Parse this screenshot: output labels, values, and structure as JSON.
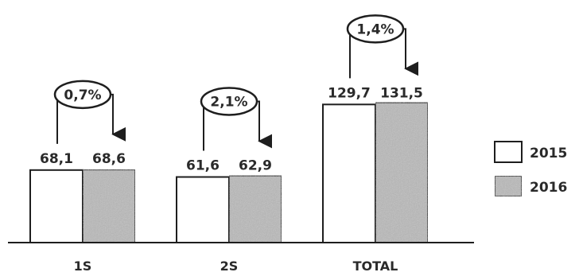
{
  "chart_data": {
    "type": "bar",
    "categories": [
      "1S",
      "2S",
      "TOTAL"
    ],
    "series": [
      {
        "name": "2015",
        "values": [
          68.1,
          61.6,
          129.7
        ],
        "labels": [
          "68,1",
          "61,6",
          "129,7"
        ]
      },
      {
        "name": "2016",
        "values": [
          68.6,
          62.9,
          131.5
        ],
        "labels": [
          "68,6",
          "62,9",
          "131,5"
        ]
      }
    ],
    "changes": [
      "0,7%",
      "2,1%",
      "1,4%"
    ],
    "ylim": [
      0,
      135
    ],
    "grid": false,
    "legend": "right",
    "colors": {
      "series_2015": "#ffffff",
      "series_2016": "#b9b9b9",
      "stroke": "#1e1e1e"
    }
  }
}
